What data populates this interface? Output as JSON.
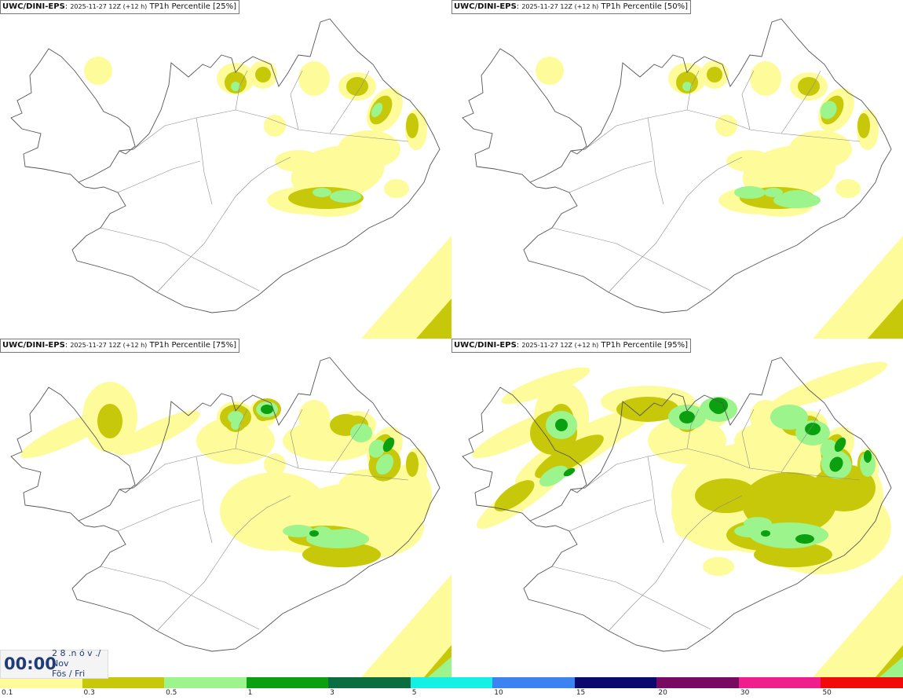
{
  "panels": [
    {
      "source": "UWC/DINI-EPS",
      "run": "2025-11-27 12Z (+12 h)",
      "product": "TP1h Percentile [25%]",
      "level": 0
    },
    {
      "source": "UWC/DINI-EPS",
      "run": "2025-11-27 12Z (+12 h)",
      "product": "TP1h Percentile [50%]",
      "level": 1
    },
    {
      "source": "UWC/DINI-EPS",
      "run": "2025-11-27 12Z (+12 h)",
      "product": "TP1h Percentile [75%]",
      "level": 2
    },
    {
      "source": "UWC/DINI-EPS",
      "run": "2025-11-27 12Z (+12 h)",
      "product": "TP1h Percentile [95%]",
      "level": 3
    }
  ],
  "time": {
    "clock": "00:00",
    "date_line": "2 8 .n ó v ./",
    "month": "Nov",
    "weekday": "Fös / Fri"
  },
  "legend": {
    "colors": [
      "#fefc9a",
      "#c8c80a",
      "#9bf48c",
      "#0aa00f",
      "#0a6e41",
      "#14f0e6",
      "#3c82f0",
      "#0a0a6e",
      "#780a64",
      "#f01e8c",
      "#f00a0a"
    ],
    "labels": [
      "0.1",
      "0.3",
      "0.5",
      "1",
      "3",
      "5",
      "10",
      "15",
      "20",
      "30",
      "50"
    ]
  },
  "colors": {
    "coast": "#555555",
    "title_text": "#111111",
    "clock_text": "#1e3c78"
  }
}
